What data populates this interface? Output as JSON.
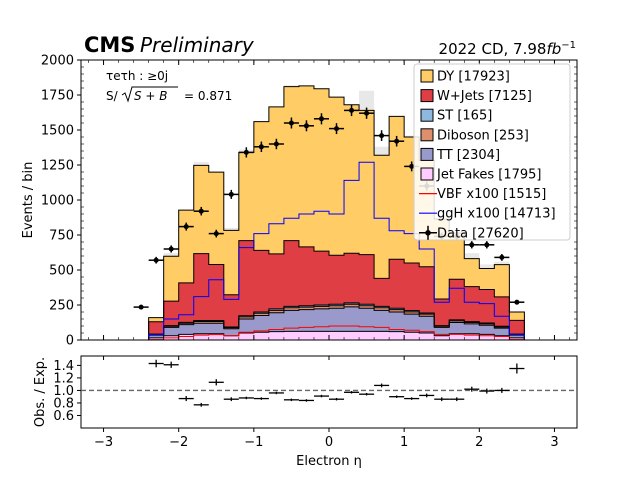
{
  "header": {
    "cms": "CMS",
    "preliminary": "Preliminary",
    "lumi_prefix": "2022 CD, 7.98",
    "lumi_unit": "fb",
    "lumi_exp": "−1"
  },
  "annotation": {
    "channel": "τeτh : ≥0j",
    "signif_prefix": "S/",
    "signif_radicand": "S + B",
    "signif_value": "= 0.871"
  },
  "colors": {
    "jetfakes": "#ffccff",
    "tt": "#9999cc",
    "diboson": "#de8f6e",
    "st": "#8fb8e0",
    "wjets": "#de3e44",
    "dy": "#ffcc66",
    "unc": "#e8e8e8",
    "vbf": "#ff0000",
    "ggh": "#0000ff",
    "data": "#000000"
  },
  "chart_data": [
    {
      "type": "histogram-stack",
      "ylabel": "Events / bin",
      "ylim": [
        0,
        2000
      ],
      "yticks": [
        0,
        250,
        500,
        750,
        1000,
        1250,
        1500,
        1750,
        2000
      ],
      "xlim": [
        -3.3,
        3.3
      ],
      "bin_edges": [
        -3.0,
        -2.8,
        -2.6,
        -2.4,
        -2.2,
        -2.0,
        -1.8,
        -1.6,
        -1.4,
        -1.2,
        -1.0,
        -0.8,
        -0.6,
        -0.4,
        -0.2,
        0.0,
        0.2,
        0.4,
        0.6,
        0.8,
        1.0,
        1.2,
        1.4,
        1.6,
        1.8,
        2.0,
        2.2,
        2.4,
        2.6,
        2.8,
        3.0
      ],
      "stack_order": [
        "jetfakes",
        "tt",
        "diboson",
        "st",
        "wjets",
        "dy"
      ],
      "series": [
        {
          "key": "jetfakes",
          "legend": "Jet Fakes [1795]",
          "values": [
            0,
            0,
            0,
            15,
            30,
            40,
            45,
            45,
            30,
            50,
            55,
            60,
            62,
            62,
            62,
            62,
            62,
            62,
            62,
            60,
            55,
            50,
            30,
            45,
            45,
            40,
            30,
            15,
            0,
            0
          ]
        },
        {
          "key": "tt",
          "legend": "TT [2304]",
          "values": [
            0,
            0,
            0,
            20,
            60,
            70,
            75,
            75,
            50,
            100,
            120,
            135,
            150,
            155,
            160,
            165,
            175,
            165,
            150,
            140,
            130,
            120,
            60,
            80,
            70,
            65,
            55,
            20,
            0,
            0
          ]
        },
        {
          "key": "diboson",
          "legend": "Diboson [253]",
          "values": [
            0,
            0,
            0,
            5,
            8,
            10,
            12,
            12,
            8,
            15,
            16,
            17,
            18,
            18,
            18,
            18,
            18,
            18,
            18,
            17,
            16,
            15,
            8,
            12,
            10,
            10,
            8,
            5,
            0,
            0
          ]
        },
        {
          "key": "st",
          "legend": "ST [165]",
          "values": [
            0,
            0,
            0,
            2,
            5,
            6,
            7,
            7,
            5,
            8,
            9,
            10,
            10,
            10,
            10,
            10,
            10,
            10,
            10,
            10,
            9,
            8,
            5,
            7,
            6,
            6,
            5,
            2,
            0,
            0
          ]
        },
        {
          "key": "wjets",
          "legend": "W+Jets [7125]",
          "values": [
            0,
            0,
            0,
            88,
            175,
            282,
            478,
            400,
            230,
            537,
            440,
            393,
            470,
            420,
            385,
            350,
            355,
            355,
            200,
            350,
            340,
            330,
            190,
            290,
            250,
            240,
            210,
            98,
            0,
            0
          ]
        },
        {
          "key": "dy",
          "legend": "DY [17923]",
          "values": [
            0,
            0,
            0,
            30,
            320,
            520,
            630,
            660,
            460,
            630,
            920,
            1050,
            1100,
            1150,
            1160,
            1130,
            1060,
            1030,
            880,
            1020,
            900,
            760,
            570,
            330,
            200,
            150,
            230,
            60,
            0,
            0
          ]
        }
      ],
      "overlays": [
        {
          "key": "vbf",
          "legend": "VBF x100 [1515]",
          "values": [
            0,
            0,
            0,
            3,
            15,
            25,
            35,
            38,
            30,
            55,
            65,
            75,
            85,
            90,
            95,
            100,
            100,
            95,
            90,
            75,
            70,
            60,
            40,
            40,
            35,
            30,
            25,
            3,
            0,
            0
          ]
        },
        {
          "key": "ggh",
          "legend": "ggH x100 [14713]",
          "values": [
            0,
            0,
            0,
            40,
            150,
            180,
            310,
            430,
            290,
            660,
            760,
            830,
            870,
            900,
            920,
            900,
            1140,
            1270,
            870,
            780,
            760,
            650,
            270,
            370,
            270,
            260,
            170,
            40,
            0,
            0
          ]
        }
      ],
      "uncertainty": {
        "key": "unc",
        "values": [
          0,
          0,
          0,
          160,
          620,
          910,
          1270,
          1190,
          800,
          1360,
          1560,
          1650,
          1820,
          1810,
          1790,
          1720,
          1670,
          1780,
          1380,
          1580,
          1460,
          1280,
          860,
          760,
          620,
          540,
          560,
          200,
          0,
          0
        ]
      },
      "data": {
        "legend": "Data [27620]",
        "values": [
          0,
          0,
          235,
          570,
          650,
          810,
          920,
          760,
          1040,
          1340,
          1380,
          1400,
          1550,
          1530,
          1580,
          1510,
          1640,
          1620,
          1460,
          1420,
          1240,
          1100,
          740,
          740,
          680,
          680,
          590,
          270,
          0,
          0
        ]
      },
      "legend_position": "top-right"
    },
    {
      "type": "ratio",
      "xlabel": "Electron η",
      "ylabel": "Obs. / Exp.",
      "ylim": [
        0.4,
        1.55
      ],
      "yticks": [
        0.6,
        0.8,
        1.0,
        1.2,
        1.4
      ],
      "xticks": [
        -3,
        -2,
        -1,
        0,
        1,
        2,
        3
      ],
      "reference": 1.0,
      "points": [
        {
          "x": -2.3,
          "y": 1.43,
          "err": 0.06
        },
        {
          "x": -2.1,
          "y": 1.41,
          "err": 0.05
        },
        {
          "x": -1.9,
          "y": 0.87,
          "err": 0.04
        },
        {
          "x": -1.7,
          "y": 0.77,
          "err": 0.03
        },
        {
          "x": -1.5,
          "y": 1.13,
          "err": 0.05
        },
        {
          "x": -1.3,
          "y": 0.86,
          "err": 0.03
        },
        {
          "x": -1.1,
          "y": 0.88,
          "err": 0.02
        },
        {
          "x": -0.9,
          "y": 0.87,
          "err": 0.02
        },
        {
          "x": -0.7,
          "y": 0.96,
          "err": 0.02
        },
        {
          "x": -0.5,
          "y": 0.85,
          "err": 0.02
        },
        {
          "x": -0.3,
          "y": 0.84,
          "err": 0.02
        },
        {
          "x": -0.1,
          "y": 0.91,
          "err": 0.02
        },
        {
          "x": 0.1,
          "y": 0.86,
          "err": 0.02
        },
        {
          "x": 0.3,
          "y": 0.97,
          "err": 0.02
        },
        {
          "x": 0.5,
          "y": 0.94,
          "err": 0.02
        },
        {
          "x": 0.7,
          "y": 1.08,
          "err": 0.03
        },
        {
          "x": 0.9,
          "y": 0.9,
          "err": 0.02
        },
        {
          "x": 1.1,
          "y": 0.87,
          "err": 0.02
        },
        {
          "x": 1.3,
          "y": 0.92,
          "err": 0.03
        },
        {
          "x": 1.5,
          "y": 0.86,
          "err": 0.03
        },
        {
          "x": 1.7,
          "y": 0.86,
          "err": 0.03
        },
        {
          "x": 1.9,
          "y": 1.02,
          "err": 0.04
        },
        {
          "x": 2.1,
          "y": 0.99,
          "err": 0.04
        },
        {
          "x": 2.3,
          "y": 1.0,
          "err": 0.04
        },
        {
          "x": 2.5,
          "y": 1.35,
          "err": 0.08
        }
      ]
    }
  ]
}
